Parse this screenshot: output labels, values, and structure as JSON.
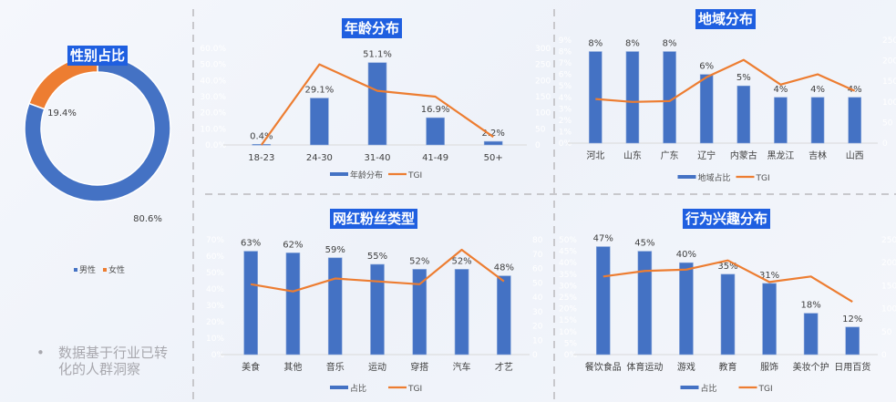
{
  "note": {
    "bullet": "•",
    "text": "数据基于行业已转化的人群洞察"
  },
  "colors": {
    "bar": "#4472c4",
    "line": "#ed7d31",
    "female": "#ed7d31",
    "male": "#4472c4",
    "title_bg": "#1f5fe0"
  },
  "chart_data": [
    {
      "id": "gender",
      "type": "pie",
      "title": "性别占比",
      "donut": true,
      "slices": [
        {
          "name": "男性",
          "value": 80.6,
          "label": "80.6%"
        },
        {
          "name": "女性",
          "value": 19.4,
          "label": "19.4%"
        }
      ],
      "legend": [
        "男性",
        "女性"
      ],
      "legend_placement": "bottom"
    },
    {
      "id": "age",
      "type": "bar+line",
      "title": "年龄分布",
      "categories": [
        "18-23",
        "24-30",
        "31-40",
        "41-49",
        "50+"
      ],
      "bar": {
        "name": "年龄分布",
        "values": [
          0.4,
          29.1,
          51.1,
          16.9,
          2.2
        ],
        "labels": [
          "0.4%",
          "29.1%",
          "51.1%",
          "16.9%",
          "2.2%"
        ]
      },
      "line": {
        "name": "TGI",
        "values": [
          0,
          250,
          168,
          150,
          25
        ]
      },
      "ylim": [
        0,
        60
      ],
      "yticks": [
        "0.0%",
        "10.0%",
        "20.0%",
        "30.0%",
        "40.0%",
        "50.0%",
        "60.0%"
      ],
      "y2lim": [
        0,
        300
      ],
      "y2ticks": [
        "0",
        "50",
        "100",
        "150",
        "200",
        "250",
        "300"
      ],
      "legend_placement": "bottom"
    },
    {
      "id": "region",
      "type": "bar+line",
      "title": "地域分布",
      "categories": [
        "河北",
        "山东",
        "广东",
        "辽宁",
        "内蒙古",
        "黑龙江",
        "吉林",
        "山西"
      ],
      "bar": {
        "name": "地域占比",
        "values": [
          8,
          8,
          8,
          6,
          5,
          4,
          4,
          4
        ],
        "labels": [
          "8%",
          "8%",
          "8%",
          "6%",
          "5%",
          "4%",
          "4%",
          "4%"
        ]
      },
      "line": {
        "name": "TGI",
        "values": [
          107,
          100,
          102,
          160,
          202,
          142,
          167,
          127
        ]
      },
      "ylim": [
        0,
        9
      ],
      "yticks": [
        "0%",
        "1%",
        "2%",
        "3%",
        "4%",
        "5%",
        "6%",
        "7%",
        "8%",
        "9%"
      ],
      "y2lim": [
        0,
        250
      ],
      "y2ticks": [
        "0",
        "50",
        "100",
        "150",
        "200",
        "250"
      ],
      "legend_placement": "bottom"
    },
    {
      "id": "kol",
      "type": "bar+line",
      "title": "网红粉丝类型",
      "categories": [
        "美食",
        "其他",
        "音乐",
        "运动",
        "穿搭",
        "汽车",
        "才艺"
      ],
      "bar": {
        "name": "占比",
        "values": [
          63,
          62,
          59,
          55,
          52,
          52,
          48
        ],
        "labels": [
          "63%",
          "62%",
          "59%",
          "55%",
          "52%",
          "52%",
          "48%"
        ]
      },
      "line": {
        "name": "TGI",
        "values": [
          49,
          44,
          53,
          51,
          49,
          73,
          51
        ]
      },
      "ylim": [
        0,
        70
      ],
      "yticks": [
        "0%",
        "10%",
        "20%",
        "30%",
        "40%",
        "50%",
        "60%",
        "70%"
      ],
      "y2lim": [
        0,
        80
      ],
      "y2ticks": [
        "0",
        "10",
        "20",
        "30",
        "40",
        "50",
        "60",
        "70",
        "80"
      ],
      "legend_placement": "bottom"
    },
    {
      "id": "interest",
      "type": "bar+line",
      "title": "行为兴趣分布",
      "categories": [
        "餐饮食品",
        "体育运动",
        "游戏",
        "教育",
        "服饰",
        "美妆个护",
        "日用百货"
      ],
      "bar": {
        "name": "占比",
        "values": [
          47,
          45,
          40,
          35,
          31,
          18,
          12
        ],
        "labels": [
          "47%",
          "45%",
          "40%",
          "35%",
          "31%",
          "18%",
          "12%"
        ]
      },
      "line": {
        "name": "TGI",
        "values": [
          170,
          182,
          185,
          205,
          158,
          170,
          115
        ]
      },
      "ylim": [
        0,
        50
      ],
      "yticks": [
        "0%",
        "5%",
        "10%",
        "15%",
        "20%",
        "25%",
        "30%",
        "35%",
        "40%",
        "45%",
        "50%"
      ],
      "y2lim": [
        0,
        250
      ],
      "y2ticks": [
        "0",
        "50",
        "100",
        "150",
        "200",
        "250"
      ],
      "legend_placement": "bottom"
    }
  ]
}
